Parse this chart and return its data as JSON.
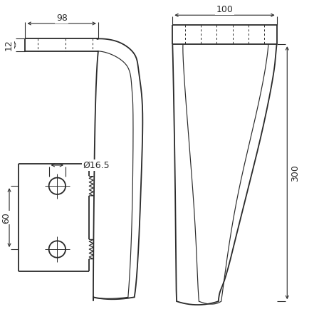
{
  "bg_color": "#ffffff",
  "line_color": "#2a2a2a",
  "dim_color": "#2a2a2a",
  "lw": 1.3,
  "lw_thin": 0.85,
  "lw_dim": 0.8,
  "fig_w": 4.48,
  "fig_h": 4.48,
  "dpi": 100,
  "label_98": "98",
  "label_12": "12",
  "label_100": "100",
  "label_300": "300",
  "label_60": "60",
  "label_hole": "Ø16.5",
  "fontsize": 9
}
